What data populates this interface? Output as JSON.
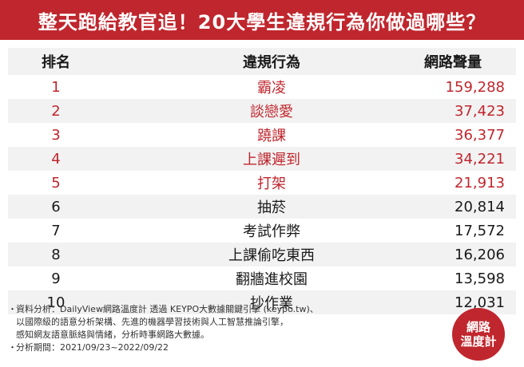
{
  "title": "整天跑給教官追！20大學生違規行為你做過哪些？",
  "table": {
    "headers": {
      "rank": "排名",
      "behavior": "違規行為",
      "volume": "網路聲量"
    },
    "rows": [
      {
        "rank": "1",
        "behavior": "霸凌",
        "volume": "159,288"
      },
      {
        "rank": "2",
        "behavior": "談戀愛",
        "volume": "37,423"
      },
      {
        "rank": "3",
        "behavior": "蹺課",
        "volume": "36,377"
      },
      {
        "rank": "4",
        "behavior": "上課遲到",
        "volume": "34,221"
      },
      {
        "rank": "5",
        "behavior": "打架",
        "volume": "21,913"
      },
      {
        "rank": "6",
        "behavior": "抽菸",
        "volume": "20,814"
      },
      {
        "rank": "7",
        "behavior": "考試作弊",
        "volume": "17,572"
      },
      {
        "rank": "8",
        "behavior": "上課偷吃東西",
        "volume": "16,206"
      },
      {
        "rank": "9",
        "behavior": "翻牆進校園",
        "volume": "13,598"
      },
      {
        "rank": "10",
        "behavior": "抄作業",
        "volume": "12,031"
      }
    ]
  },
  "footer": {
    "bullet": "・",
    "analysis_line1": "資料分析：DailyView網路溫度計 透過 KEYPO大數據關鍵引擎 (keypo.tw)、",
    "analysis_line2": "以國際級的語意分析架構、先進的機器學習技術與人工智慧推論引擎，",
    "analysis_line3": "感知網友語意脈絡與情緒，分析時事網路大數據。",
    "period": "分析期間：2021/09/23~2022/09/22"
  },
  "logo": {
    "line1": "網路",
    "line2": "溫度計"
  },
  "colors": {
    "brand_red": "#c0262d",
    "stripe": "#f2f2f2"
  }
}
